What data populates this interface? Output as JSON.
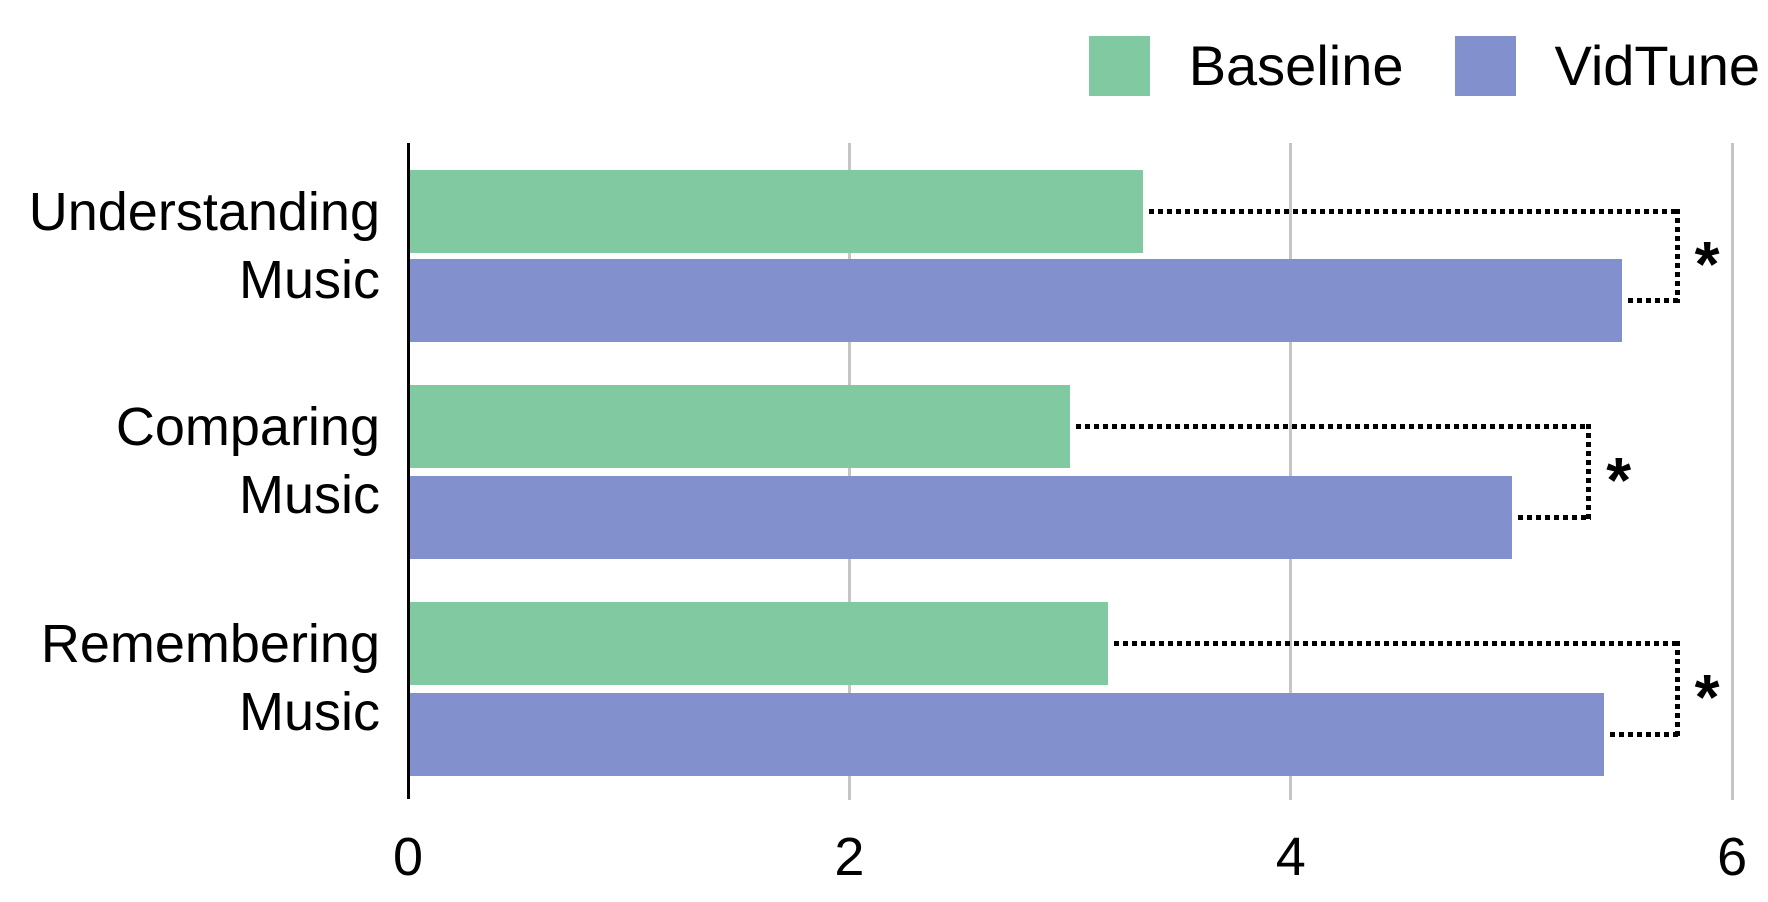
{
  "chart_data": {
    "type": "bar",
    "orientation": "horizontal",
    "categories": [
      "Understanding Music",
      "Comparing Music",
      "Remembering Music"
    ],
    "category_label_lines": [
      [
        "Understanding",
        "Music"
      ],
      [
        "Comparing",
        "Music"
      ],
      [
        "Remembering",
        "Music"
      ]
    ],
    "series": [
      {
        "name": "Baseline",
        "color": "#80C9A1",
        "values": [
          3.33,
          3.0,
          3.17
        ]
      },
      {
        "name": "VidTune",
        "color": "#8290CE",
        "values": [
          5.5,
          5.0,
          5.42
        ]
      }
    ],
    "xlabel": "",
    "ylabel": "",
    "xlim": [
      0,
      6
    ],
    "x_ticks": [
      0,
      2,
      4,
      6
    ],
    "grid": "vertical-gridlines-at-ticks",
    "legend_position": "top-right",
    "significance": [
      {
        "category": "Understanding Music",
        "label": "*",
        "bracket_end_value": 5.75
      },
      {
        "category": "Comparing Music",
        "label": "*",
        "bracket_end_value": 5.35
      },
      {
        "category": "Remembering Music",
        "label": "*",
        "bracket_end_value": 5.75
      }
    ]
  },
  "legend": {
    "items": [
      {
        "label": "Baseline",
        "color": "#80C9A1"
      },
      {
        "label": "VidTune",
        "color": "#8290CE"
      }
    ]
  },
  "colors": {
    "baseline_bar": "#80C9A1",
    "vidtune_bar": "#8290CE",
    "gridline": "#c5c5c5",
    "axis": "#000000",
    "text": "#000000",
    "bracket": "#000000"
  }
}
